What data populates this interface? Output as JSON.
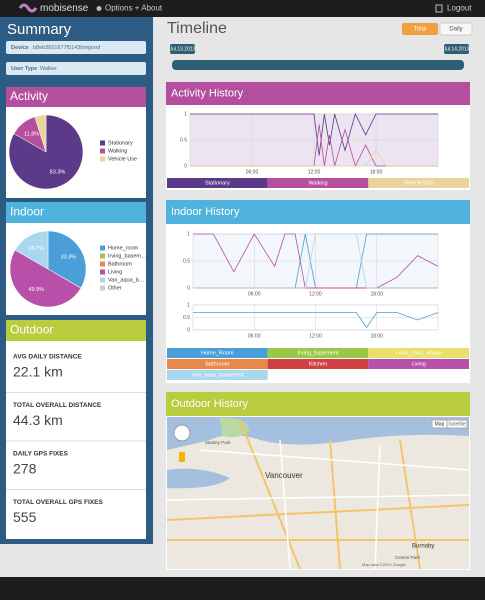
{
  "header": {
    "brand": "mobisense",
    "menu": "Options + About",
    "logout": "Logout"
  },
  "sidebar": {
    "title": "Summary",
    "device": {
      "label": "Device",
      "value": "b8eb3651677f5143bmgood"
    },
    "user_type": {
      "label": "User Type",
      "value": "Walker"
    },
    "activity": {
      "title": "Activity",
      "type": "pie",
      "categories": [
        "Stationary",
        "Walking",
        "Vehicle Use"
      ],
      "values": [
        83.3,
        11.8,
        4.9
      ],
      "value_labels": [
        "83.3%",
        "11.8%",
        null
      ],
      "colors": [
        "#5b3a8a",
        "#b64f9d",
        "#ead49c"
      ]
    },
    "indoor": {
      "title": "Indoor",
      "type": "pie",
      "categories": [
        "Home_room",
        "Irving_basem…",
        "Bathroom",
        "Living",
        "Van_aqua_b…",
        "Other"
      ],
      "values": [
        33.3,
        0.1,
        0,
        49.9,
        16.7,
        0
      ],
      "value_labels": [
        "33.3%",
        null,
        null,
        "49.9%",
        "16.7%",
        null
      ],
      "colors": [
        "#4a9fd8",
        "#9bc84a",
        "#e8884a",
        "#b84fa8",
        "#a9d8ee",
        "#cccccc"
      ]
    },
    "outdoor": {
      "title": "Outdoor",
      "stats": [
        {
          "label": "AVG DAILY DISTANCE",
          "value": "22.1 km"
        },
        {
          "label": "TOTAL OVERALL DISTANCE",
          "value": "44.3 km"
        },
        {
          "label": "DAILY GPS FIXES",
          "value": "278"
        },
        {
          "label": "TOTAL OVERALL GPS FIXES",
          "value": "555"
        }
      ]
    }
  },
  "main": {
    "title": "Timeline",
    "toggle": [
      "Total",
      "Daily"
    ],
    "slider": {
      "start": "Jul.13.2013",
      "end": "Jul.14.2013"
    },
    "activity_history": {
      "title": "Activity History",
      "type": "line",
      "xlim": [
        0,
        24
      ],
      "xticks": [
        {
          "value": 6,
          "label": "06:00"
        },
        {
          "value": 12,
          "label": "12:00"
        },
        {
          "value": 18,
          "label": "18:00"
        }
      ],
      "ylim": [
        0,
        1
      ],
      "yticks": [
        0,
        0.5,
        1
      ],
      "x": [
        0,
        3,
        6,
        9,
        12,
        12.5,
        13,
        13.5,
        14,
        15,
        16,
        17,
        18,
        19,
        20,
        22,
        24
      ],
      "series": [
        {
          "name": "Stationary",
          "color": "#5b3a8a",
          "values": [
            1,
            1,
            1,
            1,
            1,
            0.2,
            1,
            0.4,
            1,
            0.3,
            1,
            0.6,
            1,
            1,
            1,
            1,
            1
          ]
        },
        {
          "name": "Walking",
          "color": "#b64f9d",
          "values": [
            0,
            0,
            0,
            0,
            0,
            0.8,
            0,
            0.6,
            0,
            0.7,
            0,
            0.4,
            0,
            0,
            0,
            0,
            0
          ]
        },
        {
          "name": "Vehicle Use",
          "color": "#ead49c",
          "values": [
            0,
            0,
            0,
            0,
            0,
            0,
            0,
            0,
            0,
            0,
            0,
            0,
            0.3,
            0,
            0,
            0,
            0
          ]
        }
      ]
    },
    "indoor_history": {
      "title": "Indoor History",
      "type": "line",
      "xlim": [
        0,
        24
      ],
      "xticks": [
        {
          "value": 6,
          "label": "06:00"
        },
        {
          "value": 12,
          "label": "12:00"
        },
        {
          "value": 18,
          "label": "18:00"
        }
      ],
      "ylim": [
        0,
        1
      ],
      "yticks": [
        0,
        0.5,
        1
      ],
      "x": [
        0,
        2,
        4,
        6,
        8,
        9,
        10,
        11,
        12,
        14,
        16,
        17,
        18,
        20,
        22,
        24
      ],
      "series": [
        {
          "name": "Home_Room",
          "color": "#4a9fd8",
          "values": [
            0,
            0,
            0,
            0,
            0,
            0,
            0,
            1,
            0,
            0,
            0,
            1,
            1,
            1,
            1,
            1
          ]
        },
        {
          "name": "Irving_basement",
          "color": "#9bc84a",
          "values": [
            0,
            0,
            0,
            0,
            0,
            0,
            0,
            0,
            0,
            0,
            0,
            0,
            0,
            0,
            0,
            0
          ]
        },
        {
          "name": "Food_court_village",
          "color": "#e8e06a",
          "values": [
            0,
            0,
            0,
            0,
            0,
            0,
            0,
            0,
            0,
            0,
            0,
            0,
            0,
            0,
            0,
            0
          ]
        },
        {
          "name": "Bathroom",
          "color": "#e8884a",
          "values": [
            0,
            0,
            0,
            0,
            0,
            0,
            0,
            0,
            0,
            0,
            0,
            0,
            0,
            0,
            0,
            0
          ]
        },
        {
          "name": "Kitchen",
          "color": "#d04040",
          "values": [
            0,
            0,
            0,
            0,
            0,
            0,
            0,
            0,
            0,
            0,
            0,
            0,
            0,
            0,
            0,
            0
          ]
        },
        {
          "name": "Living",
          "color": "#b84fa8",
          "values": [
            1,
            1,
            0.3,
            1,
            0.4,
            1,
            1,
            0,
            0,
            0,
            0,
            0,
            0,
            0.2,
            0.6,
            0.4
          ]
        },
        {
          "name": "Van_aqua_basement",
          "color": "#a9d8ee",
          "values": [
            0,
            0,
            0,
            0,
            0,
            0,
            0,
            0,
            1,
            1,
            1,
            0,
            0,
            0,
            0,
            0
          ]
        }
      ],
      "detail": {
        "ylim": [
          0,
          1
        ],
        "yticks": [
          0,
          0.5,
          1
        ],
        "series": [
          {
            "color": "#4a9fd8",
            "values": [
              0.7,
              0.7,
              0.7,
              0.7,
              0.7,
              0.7,
              0.7,
              0.7,
              0.7,
              0.7,
              0.7,
              0.1,
              0.7,
              0.7,
              0.4,
              0.7
            ]
          }
        ]
      }
    },
    "outdoor_history": {
      "title": "Outdoor History",
      "map_button": "Map",
      "satellite_button": "Satellite",
      "places": [
        "Stanley Park",
        "Vancouver",
        "Burnaby",
        "Central Park"
      ],
      "footer": "Map data ©2013 Google"
    }
  }
}
